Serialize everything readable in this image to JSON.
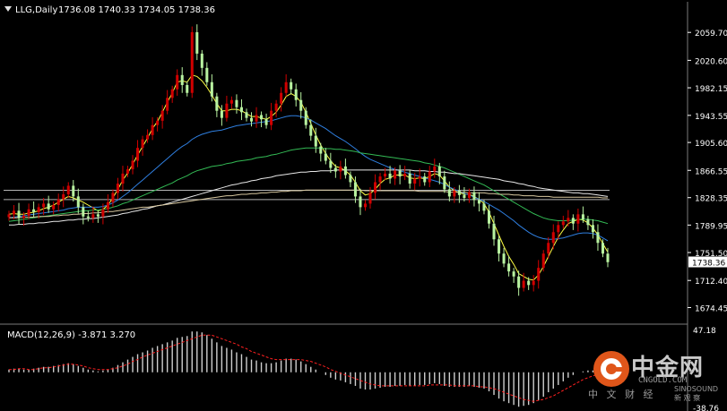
{
  "header": {
    "symbol": "LLG,Daily",
    "ohlc": "1736.08 1740.33 1734.05 1738.36"
  },
  "colors": {
    "background": "#000000",
    "up_candle": "#d00000",
    "down_candle": "#b8f2a0",
    "ma_fast": "#ffff44",
    "ma_blue": "#2f7fe0",
    "ma_green": "#33bb55",
    "ma_white": "#e8e8e8",
    "ma_tan": "#d8c8a0",
    "level_line": "#b4b4b4",
    "macd_hist": "#cfcfcf",
    "macd_signal": "#ff2020",
    "axis_text": "#ffffff"
  },
  "macd": {
    "label": "MACD(12,26,9) -3.871 3.270",
    "axis_labels": [
      "47.18",
      "-38.76"
    ]
  },
  "watermark": {
    "cn": "中金网",
    "en": "CNGOLD.COM",
    "sub": "中 文 财 经",
    "sub2": "SINOSOUND 新 观 察"
  },
  "chart_data": [
    {
      "type": "candlestick",
      "symbol": "LLG",
      "timeframe": "Daily",
      "last_price": 1738.36,
      "ylim": [
        1660,
        2080
      ],
      "y_ticks": [
        "2059.70",
        "2020.60",
        "1982.15",
        "1943.55",
        "1905.60",
        "1866.55",
        "1828.35",
        "1789.95",
        "1751.50",
        "1712.40",
        "1674.45"
      ],
      "horizontal_levels": [
        1838.6,
        1825.7
      ],
      "close": [
        1805,
        1810,
        1800,
        1803,
        1812,
        1808,
        1815,
        1820,
        1812,
        1818,
        1826,
        1833,
        1845,
        1830,
        1815,
        1802,
        1800,
        1805,
        1802,
        1812,
        1822,
        1835,
        1848,
        1862,
        1868,
        1880,
        1898,
        1910,
        1916,
        1930,
        1936,
        1950,
        1968,
        1980,
        2000,
        1986,
        1975,
        2060,
        2030,
        2010,
        1990,
        1970,
        1950,
        1940,
        1960,
        1965,
        1955,
        1948,
        1940,
        1935,
        1944,
        1938,
        1930,
        1950,
        1960,
        1975,
        1990,
        1980,
        1965,
        1950,
        1930,
        1915,
        1900,
        1890,
        1880,
        1870,
        1865,
        1872,
        1860,
        1850,
        1830,
        1815,
        1820,
        1835,
        1850,
        1858,
        1862,
        1855,
        1866,
        1858,
        1862,
        1848,
        1855,
        1858,
        1850,
        1865,
        1872,
        1858,
        1840,
        1830,
        1838,
        1832,
        1828,
        1836,
        1825,
        1820,
        1810,
        1792,
        1770,
        1750,
        1736,
        1725,
        1718,
        1702,
        1712,
        1706,
        1712,
        1730,
        1750,
        1765,
        1780,
        1790,
        1795,
        1800,
        1792,
        1805,
        1798,
        1790,
        1780,
        1765,
        1750,
        1738
      ],
      "moving_averages": [
        {
          "color": "#ffff44",
          "values": [
            1805,
            1806,
            1805,
            1805,
            1807,
            1808,
            1810,
            1813,
            1815,
            1818,
            1822,
            1826,
            1830,
            1828,
            1825,
            1822,
            1818,
            1814,
            1810,
            1812,
            1818,
            1828,
            1840,
            1853,
            1863,
            1875,
            1888,
            1900,
            1912,
            1925,
            1935,
            1948,
            1962,
            1975,
            1990,
            1992,
            1990,
            2000,
            1998,
            1992,
            1983,
            1972,
            1960,
            1950,
            1950,
            1952,
            1952,
            1950,
            1946,
            1942,
            1942,
            1940,
            1938,
            1942,
            1948,
            1958,
            1970,
            1974,
            1970,
            1962,
            1948,
            1932,
            1916,
            1902,
            1890,
            1880,
            1872,
            1870,
            1866,
            1860,
            1850,
            1838,
            1832,
            1834,
            1840,
            1848,
            1854,
            1856,
            1860,
            1860,
            1860,
            1856,
            1855,
            1856,
            1855,
            1858,
            1862,
            1860,
            1852,
            1843,
            1838,
            1835,
            1833,
            1833,
            1830,
            1826,
            1820,
            1808,
            1792,
            1776,
            1760,
            1746,
            1735,
            1722,
            1718,
            1714,
            1713,
            1720,
            1732,
            1746,
            1760,
            1773,
            1783,
            1792,
            1795,
            1798,
            1797,
            1793,
            1786,
            1776,
            1764,
            1752
          ]
        },
        {
          "color": "#2f7fe0",
          "values": [
            1800,
            1801,
            1802,
            1803,
            1804,
            1805,
            1806,
            1807,
            1808,
            1809,
            1810,
            1811,
            1813,
            1814,
            1815,
            1815,
            1815,
            1815,
            1815,
            1816,
            1818,
            1821,
            1825,
            1830,
            1835,
            1841,
            1847,
            1853,
            1859,
            1865,
            1871,
            1877,
            1883,
            1889,
            1895,
            1900,
            1904,
            1910,
            1914,
            1917,
            1919,
            1921,
            1922,
            1923,
            1925,
            1927,
            1929,
            1930,
            1931,
            1932,
            1933,
            1934,
            1935,
            1936,
            1938,
            1940,
            1942,
            1943,
            1943,
            1942,
            1940,
            1937,
            1933,
            1929,
            1925,
            1920,
            1915,
            1911,
            1907,
            1902,
            1897,
            1891,
            1886,
            1882,
            1879,
            1876,
            1873,
            1870,
            1868,
            1866,
            1864,
            1862,
            1860,
            1858,
            1856,
            1854,
            1852,
            1850,
            1847,
            1843,
            1840,
            1837,
            1834,
            1832,
            1829,
            1826,
            1823,
            1819,
            1815,
            1811,
            1806,
            1801,
            1796,
            1790,
            1785,
            1780,
            1776,
            1773,
            1771,
            1770,
            1770,
            1771,
            1772,
            1774,
            1776,
            1778,
            1779,
            1779,
            1778,
            1776,
            1772,
            1768
          ]
        },
        {
          "color": "#33bb55",
          "values": [
            1795,
            1796,
            1797,
            1798,
            1799,
            1800,
            1801,
            1802,
            1803,
            1804,
            1805,
            1806,
            1807,
            1808,
            1809,
            1810,
            1810,
            1811,
            1811,
            1812,
            1813,
            1815,
            1817,
            1820,
            1822,
            1825,
            1828,
            1831,
            1834,
            1837,
            1840,
            1843,
            1846,
            1849,
            1853,
            1856,
            1859,
            1863,
            1866,
            1868,
            1870,
            1872,
            1873,
            1874,
            1876,
            1877,
            1879,
            1880,
            1881,
            1882,
            1884,
            1885,
            1886,
            1888,
            1889,
            1891,
            1893,
            1895,
            1896,
            1897,
            1898,
            1898,
            1898,
            1898,
            1897,
            1897,
            1896,
            1896,
            1895,
            1894,
            1893,
            1891,
            1890,
            1889,
            1888,
            1887,
            1886,
            1885,
            1884,
            1883,
            1882,
            1881,
            1880,
            1879,
            1877,
            1876,
            1874,
            1872,
            1870,
            1867,
            1864,
            1861,
            1858,
            1855,
            1852,
            1849,
            1846,
            1842,
            1838,
            1834,
            1830,
            1826,
            1822,
            1818,
            1814,
            1810,
            1806,
            1803,
            1800,
            1798,
            1797,
            1796,
            1796,
            1796,
            1797,
            1798,
            1798,
            1798,
            1797,
            1796,
            1794,
            1792
          ]
        },
        {
          "color": "#e8e8e8",
          "values": [
            1790,
            1790,
            1791,
            1791,
            1792,
            1792,
            1793,
            1793,
            1794,
            1795,
            1795,
            1796,
            1797,
            1797,
            1798,
            1798,
            1799,
            1799,
            1800,
            1801,
            1802,
            1803,
            1804,
            1806,
            1807,
            1809,
            1810,
            1812,
            1813,
            1815,
            1817,
            1818,
            1820,
            1822,
            1824,
            1826,
            1828,
            1830,
            1832,
            1834,
            1836,
            1838,
            1840,
            1842,
            1844,
            1846,
            1847,
            1849,
            1850,
            1852,
            1853,
            1855,
            1856,
            1857,
            1859,
            1860,
            1861,
            1862,
            1863,
            1864,
            1864,
            1865,
            1865,
            1866,
            1866,
            1866,
            1867,
            1867,
            1867,
            1867,
            1867,
            1867,
            1867,
            1867,
            1867,
            1867,
            1867,
            1867,
            1867,
            1867,
            1867,
            1867,
            1866,
            1866,
            1866,
            1865,
            1865,
            1864,
            1864,
            1863,
            1862,
            1862,
            1861,
            1860,
            1859,
            1858,
            1857,
            1856,
            1855,
            1854,
            1852,
            1851,
            1850,
            1848,
            1847,
            1845,
            1844,
            1842,
            1841,
            1840,
            1839,
            1838,
            1837,
            1836,
            1835,
            1835,
            1834,
            1834,
            1833,
            1832,
            1831,
            1830
          ]
        },
        {
          "color": "#d8c8a0",
          "values": [
            1800,
            1800,
            1800,
            1801,
            1801,
            1801,
            1802,
            1802,
            1802,
            1803,
            1803,
            1804,
            1804,
            1805,
            1805,
            1806,
            1806,
            1807,
            1807,
            1808,
            1809,
            1809,
            1810,
            1811,
            1812,
            1813,
            1814,
            1815,
            1815,
            1816,
            1817,
            1818,
            1819,
            1820,
            1821,
            1822,
            1823,
            1824,
            1825,
            1826,
            1827,
            1828,
            1829,
            1830,
            1831,
            1831,
            1832,
            1833,
            1833,
            1834,
            1834,
            1835,
            1835,
            1836,
            1836,
            1837,
            1837,
            1838,
            1838,
            1838,
            1839,
            1839,
            1839,
            1839,
            1839,
            1839,
            1839,
            1839,
            1839,
            1839,
            1839,
            1839,
            1838,
            1838,
            1838,
            1838,
            1838,
            1838,
            1838,
            1838,
            1838,
            1838,
            1838,
            1837,
            1837,
            1837,
            1837,
            1837,
            1837,
            1836,
            1836,
            1836,
            1836,
            1835,
            1835,
            1835,
            1835,
            1834,
            1834,
            1833,
            1833,
            1833,
            1832,
            1832,
            1831,
            1831,
            1831,
            1830,
            1830,
            1830,
            1829,
            1829,
            1829,
            1829,
            1829,
            1829,
            1829,
            1829,
            1829,
            1829,
            1828,
            1828
          ]
        }
      ]
    },
    {
      "type": "bar",
      "title": "MACD(12,26,9) -3.871 3.270",
      "ylim": [
        -38.76,
        47.18
      ],
      "y_ticks": [
        "47.18",
        "-38.76"
      ],
      "macd_values": [
        3,
        4,
        4,
        3,
        3,
        4,
        5,
        6,
        6,
        7,
        8,
        9,
        10,
        9,
        7,
        5,
        3,
        2,
        1,
        2,
        3,
        5,
        8,
        11,
        14,
        17,
        20,
        22,
        24,
        27,
        29,
        31,
        33,
        35,
        38,
        39,
        40,
        45,
        45,
        44,
        41,
        37,
        33,
        29,
        27,
        25,
        22,
        20,
        17,
        14,
        13,
        11,
        10,
        10,
        11,
        13,
        15,
        15,
        14,
        12,
        9,
        6,
        3,
        0,
        -3,
        -6,
        -8,
        -9,
        -11,
        -13,
        -15,
        -18,
        -19,
        -19,
        -18,
        -17,
        -16,
        -16,
        -15,
        -15,
        -14,
        -15,
        -15,
        -14,
        -14,
        -13,
        -12,
        -13,
        -15,
        -16,
        -16,
        -16,
        -16,
        -15,
        -16,
        -17,
        -18,
        -21,
        -25,
        -29,
        -32,
        -34,
        -36,
        -38,
        -37,
        -36,
        -34,
        -31,
        -27,
        -22,
        -18,
        -14,
        -10,
        -6,
        -3,
        0,
        1,
        2,
        2,
        1,
        -1,
        -4
      ],
      "signal_values": [
        3,
        3,
        4,
        4,
        3,
        3,
        4,
        5,
        5,
        6,
        7,
        8,
        9,
        9,
        8,
        7,
        5,
        4,
        3,
        3,
        3,
        4,
        5,
        7,
        9,
        12,
        14,
        17,
        19,
        21,
        23,
        25,
        27,
        29,
        31,
        33,
        35,
        37,
        39,
        41,
        41,
        41,
        39,
        37,
        35,
        33,
        31,
        28,
        26,
        23,
        21,
        19,
        17,
        15,
        14,
        14,
        14,
        14,
        14,
        14,
        13,
        12,
        10,
        8,
        6,
        3,
        1,
        -1,
        -3,
        -5,
        -7,
        -9,
        -11,
        -13,
        -14,
        -15,
        -15,
        -15,
        -15,
        -15,
        -15,
        -15,
        -15,
        -15,
        -15,
        -14,
        -14,
        -14,
        -14,
        -14,
        -15,
        -15,
        -15,
        -15,
        -15,
        -16,
        -16,
        -17,
        -18,
        -20,
        -22,
        -24,
        -26,
        -28,
        -30,
        -31,
        -32,
        -31,
        -30,
        -28,
        -26,
        -23,
        -20,
        -17,
        -14,
        -11,
        -8,
        -6,
        -4,
        -2,
        0,
        1
      ]
    }
  ]
}
